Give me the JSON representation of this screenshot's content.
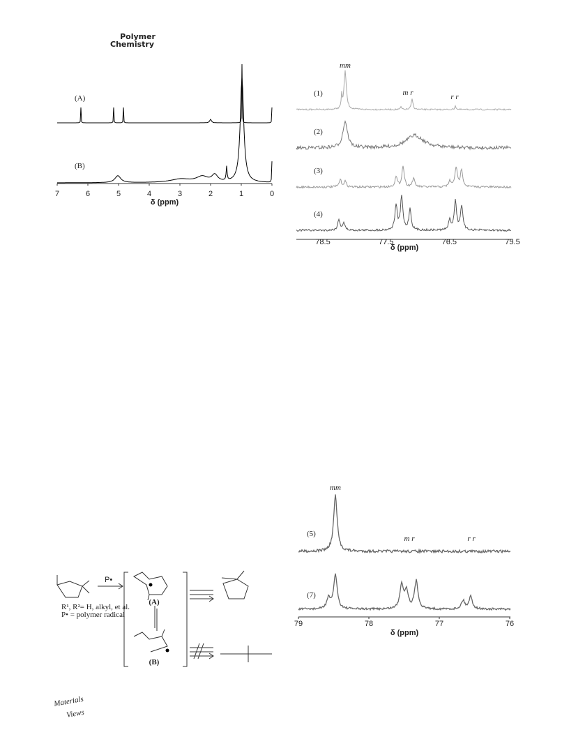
{
  "header": {
    "journal": [
      "Polymer",
      "Chemistry"
    ]
  },
  "figure1": {
    "traces": [
      "(A)",
      "(B)"
    ],
    "xticks": [
      "7",
      "6",
      "5",
      "4",
      "3",
      "2",
      "1",
      "0"
    ],
    "xlabel": "δ (ppm)"
  },
  "figure2": {
    "peak_labels": [
      "mm",
      "m r",
      "r r"
    ],
    "traces": [
      "(1)",
      "(2)",
      "(3)",
      "(4)"
    ],
    "xticks": [
      "78.5",
      "77.5",
      "76.5",
      "75.5"
    ],
    "xlabel": "δ (ppm)"
  },
  "figure3": {
    "peak_labels": [
      "mm",
      "m r",
      "r r"
    ],
    "traces": [
      "(5)",
      "(7)"
    ],
    "xticks": [
      "79",
      "78",
      "77",
      "76"
    ],
    "xlabel": "δ (ppm)"
  },
  "scheme": {
    "initiator": "P•",
    "substituents": "R¹, R²= H, alkyl, et al.",
    "radical_note": "P• = polymer radical",
    "intermediates": [
      "(A)",
      "(B)"
    ]
  },
  "footer": {
    "logo": [
      "Materials",
      "Views"
    ]
  }
}
